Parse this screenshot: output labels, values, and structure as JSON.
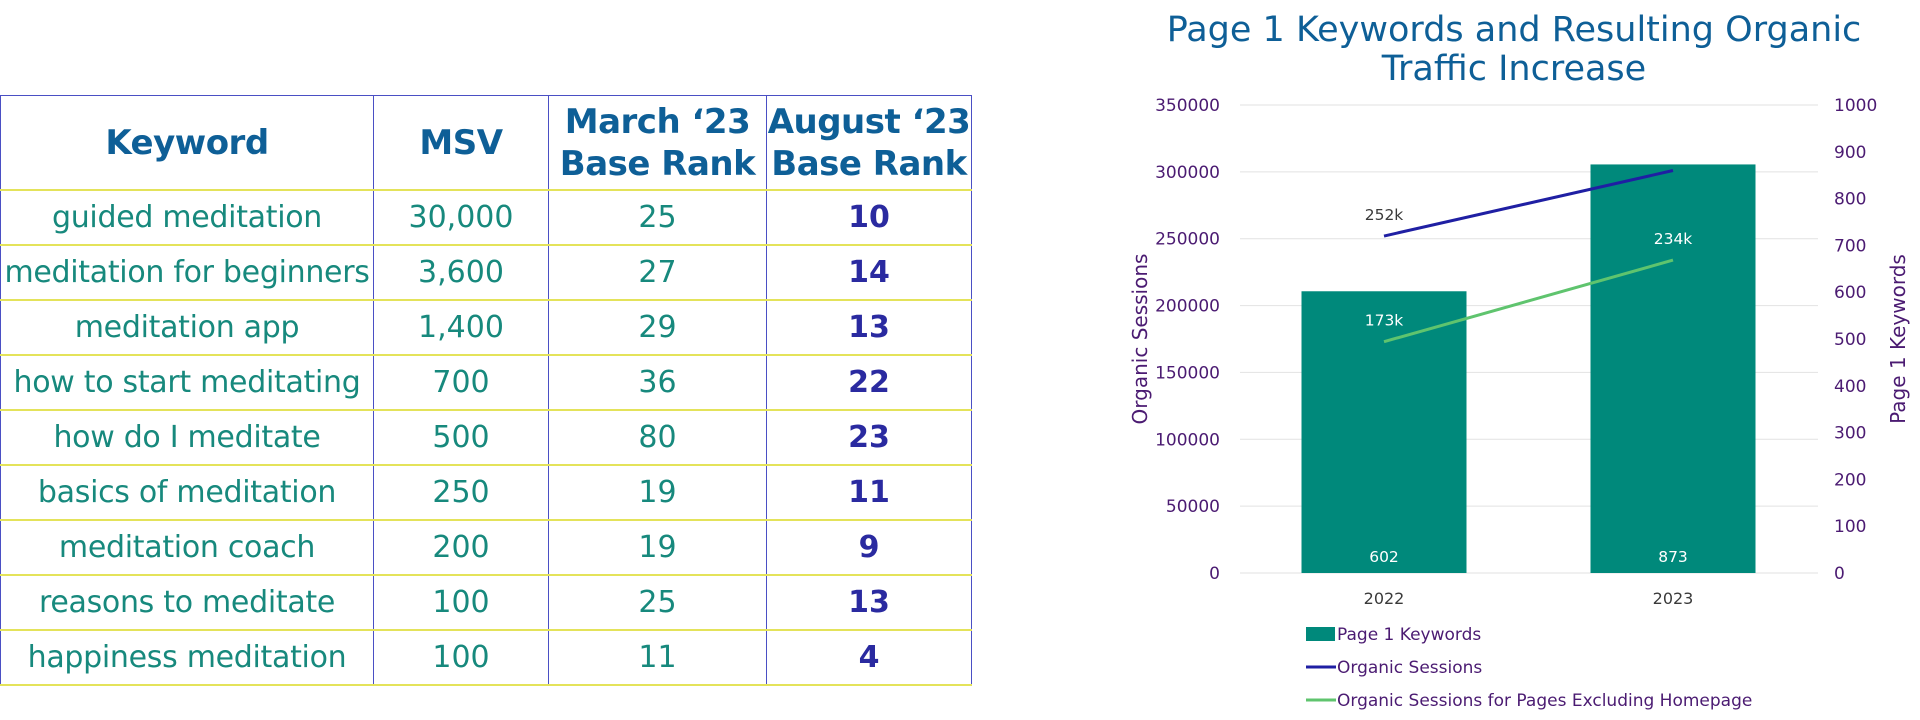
{
  "table": {
    "headers": {
      "keyword": "Keyword",
      "msv": "MSV",
      "march_line1": "March ‘23",
      "march_line2": "Base Rank",
      "august_line1": "August ‘23",
      "august_line2": "Base Rank"
    },
    "rows": [
      {
        "keyword": "guided meditation",
        "msv": "30,000",
        "march": "25",
        "august": "10"
      },
      {
        "keyword": "meditation for beginners",
        "msv": "3,600",
        "march": "27",
        "august": "14"
      },
      {
        "keyword": "meditation app",
        "msv": "1,400",
        "march": "29",
        "august": "13"
      },
      {
        "keyword": "how to start meditating",
        "msv": "700",
        "march": "36",
        "august": "22"
      },
      {
        "keyword": "how do I meditate",
        "msv": "500",
        "march": "80",
        "august": "23"
      },
      {
        "keyword": "basics of meditation",
        "msv": "250",
        "march": "19",
        "august": "11"
      },
      {
        "keyword": "meditation coach",
        "msv": "200",
        "march": "19",
        "august": "9"
      },
      {
        "keyword": "reasons to meditate",
        "msv": "100",
        "march": "25",
        "august": "13"
      },
      {
        "keyword": "happiness meditation",
        "msv": "100",
        "march": "11",
        "august": "4"
      }
    ]
  },
  "chart_data": {
    "type": "bar",
    "title_line1": "Page 1 Keywords and Resulting Organic",
    "title_line2": "Traffic Increase",
    "categories": [
      "2022",
      "2023"
    ],
    "ylabel_left": "Organic Sessions",
    "ylabel_right": "Page 1 Keywords",
    "ylim_left": [
      0,
      350000
    ],
    "ylim_right": [
      0,
      1000
    ],
    "yticks_left": [
      "0",
      "50000",
      "100000",
      "150000",
      "200000",
      "250000",
      "300000",
      "350000"
    ],
    "yticks_right": [
      "0",
      "100",
      "200",
      "300",
      "400",
      "500",
      "600",
      "700",
      "800",
      "900",
      "1000"
    ],
    "grid": true,
    "legend_position": "bottom",
    "series": [
      {
        "name": "Page 1 Keywords",
        "kind": "bar",
        "axis": "right",
        "color": "#00897b",
        "values": [
          602,
          873
        ],
        "labels": [
          "602",
          "873"
        ]
      },
      {
        "name": "Organic Sessions",
        "kind": "line",
        "axis": "left",
        "color": "#1f1fa3",
        "values": [
          252000,
          301000
        ],
        "labels": [
          "252k",
          "301k"
        ]
      },
      {
        "name": "Organic Sessions for Pages Excluding Homepage",
        "kind": "line",
        "axis": "left",
        "color": "#5fc46e",
        "values": [
          173000,
          234000
        ],
        "labels": [
          "173k",
          "234k"
        ]
      }
    ]
  }
}
